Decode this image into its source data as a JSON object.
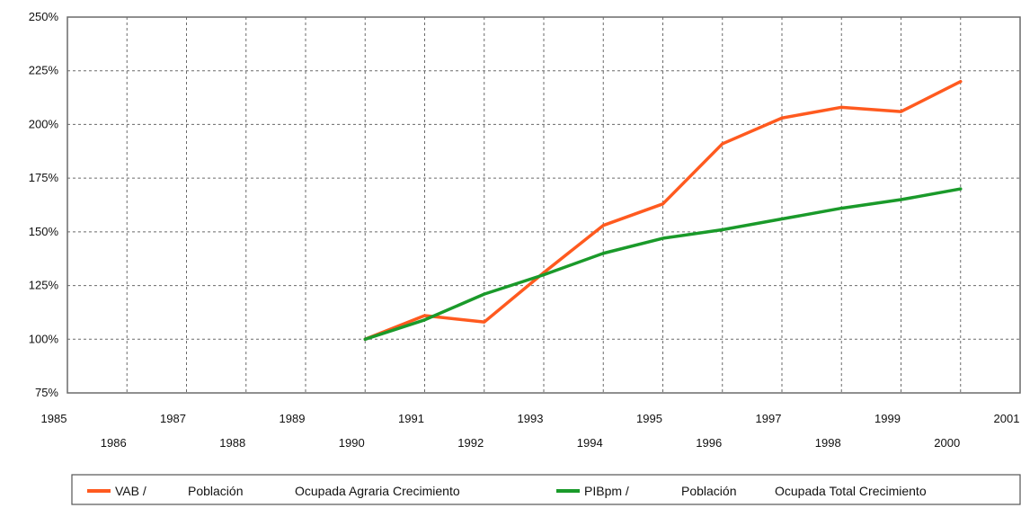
{
  "colors": {
    "series_1": "#ff5a1f",
    "series_2": "#1a9a2a",
    "grid": "#6a6a6a",
    "frame": "#6a6a6a"
  },
  "chart_data": {
    "type": "line",
    "grid": true,
    "legend_position": "bottom",
    "xlim": [
      1985,
      2001
    ],
    "ylim": [
      75,
      250
    ],
    "x_ticks": [
      1985,
      1986,
      1987,
      1988,
      1989,
      1990,
      1991,
      1992,
      1993,
      1994,
      1995,
      1996,
      1997,
      1998,
      1999,
      2000,
      2001
    ],
    "x_tick_labels": [
      "1985",
      "1986",
      "1987",
      "1988",
      "1989",
      "1990",
      "1991",
      "1992",
      "1993",
      "1994",
      "1995",
      "1996",
      "1997",
      "1998",
      "1999",
      "2000",
      "2001"
    ],
    "y_ticks": [
      75,
      100,
      125,
      150,
      175,
      200,
      225,
      250
    ],
    "y_tick_labels": [
      "75%",
      "100%",
      "125%",
      "150%",
      "175%",
      "200%",
      "225%",
      "250%"
    ],
    "series": [
      {
        "name": "VAB / Población Ocupada Agraria Crecimiento",
        "legend_parts": [
          "VAB /",
          "Población",
          "Ocupada Agraria Crecimiento"
        ],
        "color_key": "series_1",
        "x": [
          1990,
          1991,
          1992,
          1993,
          1994,
          1995,
          1996,
          1997,
          1998,
          1999,
          2000
        ],
        "values": [
          100,
          111,
          108,
          131,
          153,
          163,
          191,
          203,
          208,
          206,
          220
        ]
      },
      {
        "name": "PIBpm / Población Ocupada Total Crecimiento",
        "legend_parts": [
          "PIBpm /",
          "Población",
          "Ocupada Total Crecimiento"
        ],
        "color_key": "series_2",
        "x": [
          1990,
          1991,
          1992,
          1993,
          1994,
          1995,
          1996,
          1997,
          1998,
          1999,
          2000
        ],
        "values": [
          100,
          109,
          121,
          130,
          140,
          147,
          151,
          156,
          161,
          165,
          170
        ]
      }
    ]
  }
}
